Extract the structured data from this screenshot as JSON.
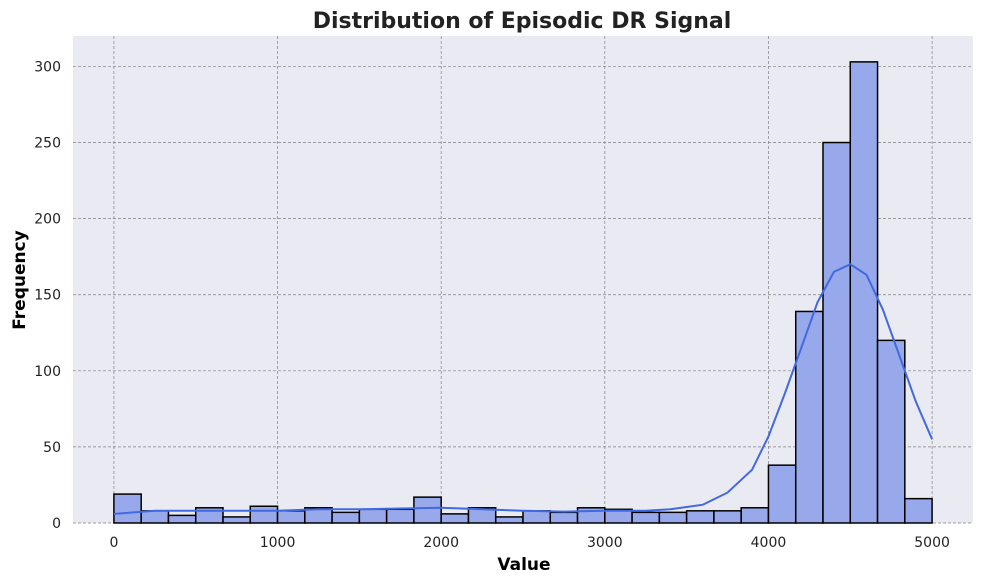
{
  "chart_data": {
    "type": "bar",
    "title": "Distribution of Episodic DR Signal",
    "xlabel": "Value",
    "ylabel": "Frequency",
    "xlim": [
      -250,
      5250
    ],
    "ylim": [
      0,
      320
    ],
    "x_ticks": [
      0,
      1000,
      2000,
      3000,
      4000,
      5000
    ],
    "y_ticks": [
      0,
      50,
      100,
      150,
      200,
      250,
      300
    ],
    "grid": true,
    "bin_edges": [
      0,
      166.7,
      333.3,
      500,
      666.7,
      833.3,
      1000,
      1166.7,
      1333.3,
      1500,
      1666.7,
      1833.3,
      2000,
      2166.7,
      2333.3,
      2500,
      2666.7,
      2833.3,
      3000,
      3166.7,
      3333.3,
      3500,
      3666.7,
      3833.3,
      4000,
      4166.7,
      4333.3,
      4500,
      4666.7,
      4833.3,
      5000
    ],
    "counts": [
      19,
      8,
      5,
      10,
      4,
      11,
      8,
      10,
      7,
      9,
      9,
      17,
      6,
      10,
      4,
      8,
      7,
      10,
      9,
      7,
      7,
      8,
      8,
      10,
      38,
      139,
      250,
      303,
      120,
      16
    ],
    "kde_curve": {
      "x": [
        0,
        250,
        500,
        750,
        1000,
        1250,
        1500,
        1750,
        2000,
        2250,
        2500,
        2750,
        3000,
        3250,
        3400,
        3600,
        3750,
        3900,
        4000,
        4100,
        4200,
        4300,
        4400,
        4500,
        4600,
        4700,
        4800,
        4900,
        5000
      ],
      "y": [
        6,
        8,
        8,
        8,
        8,
        9,
        9,
        9.5,
        10,
        9,
        8,
        7.5,
        8,
        8,
        9,
        12,
        20,
        35,
        57,
        85,
        115,
        145,
        165,
        170,
        163,
        140,
        110,
        80,
        55
      ]
    },
    "colors": {
      "bar_fill": "#97a9ea",
      "bar_edge": "#000000",
      "kde_line": "#4169e1",
      "plot_background": "#eaeaf2",
      "grid": "#808080"
    }
  }
}
